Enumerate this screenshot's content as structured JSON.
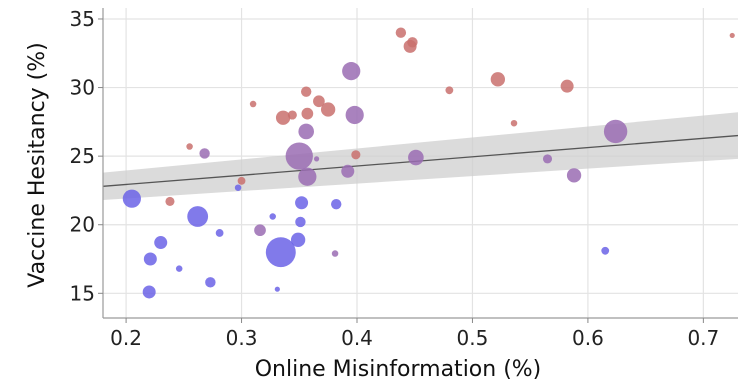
{
  "chart_data": {
    "type": "scatter",
    "title": "",
    "xlabel": "Online Misinformation (%)",
    "ylabel": "Vaccine Hesitancy (%)",
    "xlim": [
      0.18,
      0.73
    ],
    "ylim": [
      13.2,
      35.8
    ],
    "xticks": [
      0.2,
      0.3,
      0.4,
      0.5,
      0.6,
      0.7
    ],
    "xtick_labels": [
      "0.2",
      "0.3",
      "0.4",
      "0.5",
      "0.6",
      "0.7"
    ],
    "yticks": [
      15,
      20,
      25,
      30,
      35
    ],
    "ytick_labels": [
      "15",
      "20",
      "25",
      "30",
      "35"
    ],
    "grid": true,
    "legend": "none",
    "colors": {
      "red": "#c9706d",
      "purple": "#9a6cb3",
      "blue": "#6b63e6",
      "band": "#cfcfcf",
      "line": "#555555"
    },
    "trend": {
      "x": [
        0.18,
        0.73
      ],
      "y": [
        22.8,
        26.5
      ],
      "ci_low": [
        21.8,
        24.8
      ],
      "ci_high": [
        23.8,
        28.2
      ]
    },
    "points": [
      {
        "x": 0.438,
        "y": 34.0,
        "size": 8,
        "color": "red"
      },
      {
        "x": 0.446,
        "y": 33.0,
        "size": 10,
        "color": "red"
      },
      {
        "x": 0.448,
        "y": 33.3,
        "size": 8,
        "color": "red"
      },
      {
        "x": 0.725,
        "y": 33.8,
        "size": 4,
        "color": "red"
      },
      {
        "x": 0.395,
        "y": 31.2,
        "size": 14,
        "color": "purple"
      },
      {
        "x": 0.522,
        "y": 30.6,
        "size": 11,
        "color": "red"
      },
      {
        "x": 0.356,
        "y": 29.7,
        "size": 8,
        "color": "red"
      },
      {
        "x": 0.367,
        "y": 29.0,
        "size": 9,
        "color": "red"
      },
      {
        "x": 0.375,
        "y": 28.4,
        "size": 11,
        "color": "red"
      },
      {
        "x": 0.582,
        "y": 30.1,
        "size": 10,
        "color": "red"
      },
      {
        "x": 0.48,
        "y": 29.8,
        "size": 6,
        "color": "red"
      },
      {
        "x": 0.31,
        "y": 28.8,
        "size": 5,
        "color": "red"
      },
      {
        "x": 0.336,
        "y": 27.8,
        "size": 11,
        "color": "red"
      },
      {
        "x": 0.344,
        "y": 28.0,
        "size": 7,
        "color": "red"
      },
      {
        "x": 0.357,
        "y": 28.1,
        "size": 9,
        "color": "red"
      },
      {
        "x": 0.398,
        "y": 28.0,
        "size": 14,
        "color": "purple"
      },
      {
        "x": 0.536,
        "y": 27.4,
        "size": 5,
        "color": "red"
      },
      {
        "x": 0.356,
        "y": 26.8,
        "size": 12,
        "color": "purple"
      },
      {
        "x": 0.624,
        "y": 26.8,
        "size": 18,
        "color": "purple"
      },
      {
        "x": 0.255,
        "y": 25.7,
        "size": 5,
        "color": "red"
      },
      {
        "x": 0.268,
        "y": 25.2,
        "size": 8,
        "color": "purple"
      },
      {
        "x": 0.35,
        "y": 25.0,
        "size": 21,
        "color": "purple"
      },
      {
        "x": 0.365,
        "y": 24.8,
        "size": 4,
        "color": "purple"
      },
      {
        "x": 0.399,
        "y": 25.1,
        "size": 7,
        "color": "red"
      },
      {
        "x": 0.451,
        "y": 24.9,
        "size": 12,
        "color": "purple"
      },
      {
        "x": 0.565,
        "y": 24.8,
        "size": 7,
        "color": "purple"
      },
      {
        "x": 0.357,
        "y": 23.5,
        "size": 14,
        "color": "purple"
      },
      {
        "x": 0.392,
        "y": 23.9,
        "size": 10,
        "color": "purple"
      },
      {
        "x": 0.588,
        "y": 23.6,
        "size": 11,
        "color": "purple"
      },
      {
        "x": 0.3,
        "y": 23.2,
        "size": 6,
        "color": "red"
      },
      {
        "x": 0.297,
        "y": 22.7,
        "size": 5,
        "color": "blue"
      },
      {
        "x": 0.238,
        "y": 21.7,
        "size": 7,
        "color": "red"
      },
      {
        "x": 0.205,
        "y": 21.9,
        "size": 14,
        "color": "blue"
      },
      {
        "x": 0.352,
        "y": 21.6,
        "size": 10,
        "color": "blue"
      },
      {
        "x": 0.382,
        "y": 21.5,
        "size": 8,
        "color": "blue"
      },
      {
        "x": 0.262,
        "y": 20.6,
        "size": 16,
        "color": "blue"
      },
      {
        "x": 0.327,
        "y": 20.6,
        "size": 5,
        "color": "blue"
      },
      {
        "x": 0.351,
        "y": 20.2,
        "size": 8,
        "color": "blue"
      },
      {
        "x": 0.316,
        "y": 19.6,
        "size": 9,
        "color": "purple"
      },
      {
        "x": 0.281,
        "y": 19.4,
        "size": 6,
        "color": "blue"
      },
      {
        "x": 0.23,
        "y": 18.7,
        "size": 10,
        "color": "blue"
      },
      {
        "x": 0.349,
        "y": 18.9,
        "size": 11,
        "color": "blue"
      },
      {
        "x": 0.334,
        "y": 18.0,
        "size": 23,
        "color": "blue"
      },
      {
        "x": 0.381,
        "y": 17.9,
        "size": 5,
        "color": "purple"
      },
      {
        "x": 0.221,
        "y": 17.5,
        "size": 10,
        "color": "blue"
      },
      {
        "x": 0.615,
        "y": 18.1,
        "size": 6,
        "color": "blue"
      },
      {
        "x": 0.246,
        "y": 16.8,
        "size": 5,
        "color": "blue"
      },
      {
        "x": 0.273,
        "y": 15.8,
        "size": 8,
        "color": "blue"
      },
      {
        "x": 0.331,
        "y": 15.3,
        "size": 4,
        "color": "blue"
      },
      {
        "x": 0.22,
        "y": 15.1,
        "size": 10,
        "color": "blue"
      }
    ]
  }
}
